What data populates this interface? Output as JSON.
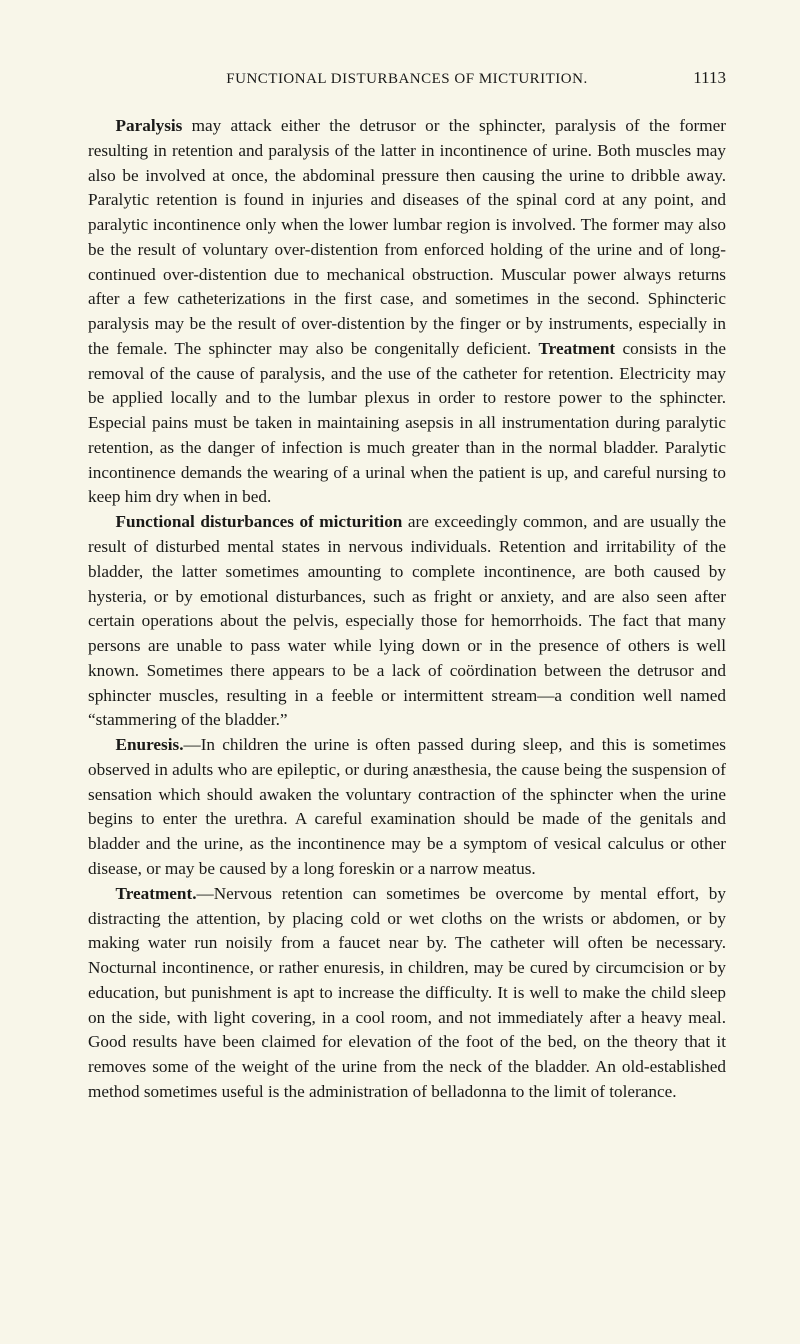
{
  "header": {
    "title": "FUNCTIONAL DISTURBANCES OF MICTURITION.",
    "page_number": "1113"
  },
  "paragraphs": [
    {
      "lead": "Paralysis",
      "body": " may attack either the detrusor or the sphincter, paralysis of the former resulting in retention and paralysis of the latter in incontinence of urine. Both muscles may also be involved at once, the abdominal pressure then causing the urine to dribble away. Paralytic retention is found in injuries and diseases of the spinal cord at any point, and paralytic incontinence only when the lower lumbar region is involved. The former may also be the result of voluntary over-distention from enforced holding of the urine and of long-continued over-distention due to mechanical obstruction. Muscular power always returns after a few catheterizations in the first case, and sometimes in the second. Sphincteric paralysis may be the result of over-distention by the finger or by instruments, especially in the female. The sphincter may also be congenitally deficient. ",
      "tail_bold": "Treatment",
      "tail": " consists in the removal of the cause of paralysis, and the use of the catheter for retention. Electricity may be applied locally and to the lumbar plexus in order to restore power to the sphincter. Especial pains must be taken in maintaining asepsis in all instrumentation during paralytic retention, as the danger of infection is much greater than in the normal bladder. Paralytic incontinence demands the wearing of a urinal when the patient is up, and careful nursing to keep him dry when in bed."
    },
    {
      "lead": "Functional disturbances of micturition",
      "body": " are exceedingly common, and are usually the result of disturbed mental states in nervous individuals. Retention and irritability of the bladder, the latter sometimes amounting to complete incontinence, are both caused by hysteria, or by emotional disturbances, such as fright or anxiety, and are also seen after certain operations about the pelvis, especially those for hemorrhoids. The fact that many persons are unable to pass water while lying down or in the presence of others is well known. Sometimes there appears to be a lack of coördination between the detrusor and sphincter muscles, resulting in a feeble or intermittent stream—a condition well named “stammering of the bladder.”"
    },
    {
      "lead": "Enuresis.",
      "body": "—In children the urine is often passed during sleep, and this is sometimes observed in adults who are epileptic, or during anæsthesia, the cause being the suspension of sensation which should awaken the voluntary contraction of the sphincter when the urine begins to enter the urethra. A careful examination should be made of the genitals and bladder and the urine, as the incontinence may be a symptom of vesical calculus or other disease, or may be caused by a long foreskin or a narrow meatus."
    },
    {
      "lead": "Treatment.",
      "body": "—Nervous retention can sometimes be overcome by mental effort, by distracting the attention, by placing cold or wet cloths on the wrists or abdomen, or by making water run noisily from a faucet near by. The catheter will often be necessary. Nocturnal incontinence, or rather enuresis, in children, may be cured by circumcision or by education, but punishment is apt to increase the difficulty. It is well to make the child sleep on the side, with light covering, in a cool room, and not immediately after a heavy meal. Good results have been claimed for elevation of the foot of the bed, on the theory that it removes some of the weight of the urine from the neck of the bladder. An old-established method sometimes useful is the administration of belladonna to the limit of tolerance."
    }
  ]
}
